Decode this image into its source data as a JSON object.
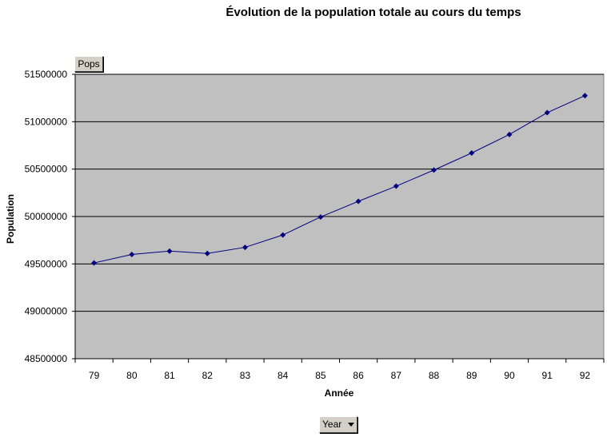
{
  "chart_data": {
    "type": "line",
    "title": "Évolution de la population totale au cours du temps",
    "xlabel": "Année",
    "ylabel": "Population",
    "categories": [
      "79",
      "80",
      "81",
      "82",
      "83",
      "84",
      "85",
      "86",
      "87",
      "88",
      "89",
      "90",
      "91",
      "92"
    ],
    "series": [
      {
        "values": [
          49510000,
          49600000,
          49635000,
          49610000,
          49675000,
          49805000,
          49995000,
          50160000,
          50320000,
          50490000,
          50670000,
          50865000,
          51095000,
          51275000
        ],
        "color": "#000080"
      }
    ],
    "ylim": [
      48500000,
      51500000
    ],
    "yticks": [
      "48500000",
      "49000000",
      "49500000",
      "50000000",
      "50500000",
      "51000000",
      "51500000"
    ],
    "grid": true,
    "plot_background": "#c0c0c0"
  },
  "pivot": {
    "data_field_label": "Pops",
    "category_field_label": "Year"
  }
}
